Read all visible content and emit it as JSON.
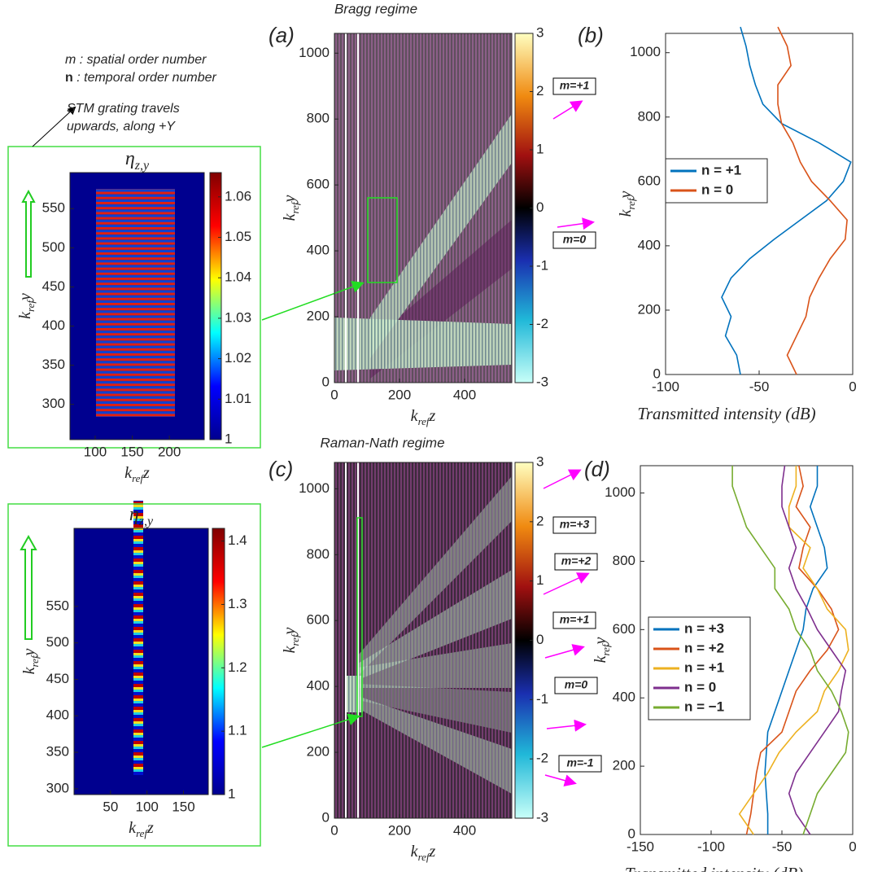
{
  "annotations": {
    "legend_m": {
      "symbol": "m",
      "text": ": spatial order number"
    },
    "legend_n": {
      "symbol": "n",
      "text": ": temporal order number"
    },
    "stm": [
      "STM grating travels",
      "upwards, along +Y"
    ]
  },
  "chart_data": [
    {
      "type": "heatmap",
      "title": [
        "η",
        "z,y"
      ],
      "xlabel": [
        "k",
        "ref",
        "z"
      ],
      "ylabel": [
        "k",
        "ref",
        "y"
      ],
      "xlim": [
        66,
        247
      ],
      "xticks": [
        100,
        150,
        200
      ],
      "ylim": [
        255,
        596
      ],
      "yticks": [
        300,
        350,
        400,
        450,
        500,
        550
      ],
      "clim": [
        1,
        1.066
      ],
      "cticks": [
        1,
        1.01,
        1.02,
        1.03,
        1.04,
        1.05,
        1.06
      ],
      "colormap": "jet"
    },
    {
      "type": "heatmap",
      "panel": "(a)",
      "title": "Bragg regime",
      "xlabel": [
        "k",
        "ref",
        "z"
      ],
      "ylabel": [
        "k",
        "ref",
        "y"
      ],
      "xlim": [
        0,
        545
      ],
      "xticks": [
        0,
        200,
        400
      ],
      "ylim": [
        0,
        1060
      ],
      "yticks": [
        0,
        200,
        400,
        600,
        800,
        1000
      ],
      "clim": [
        -3,
        3
      ],
      "cticks": [
        -3,
        -2,
        -1,
        0,
        1,
        2,
        3
      ],
      "colormap": "field",
      "order_labels": [
        "m=+1",
        "m=0"
      ]
    },
    {
      "type": "line",
      "panel": "(b)",
      "xlabel": "Transmitted intensity (dB)",
      "ylabel": [
        "k",
        "ref",
        "y"
      ],
      "xlim": [
        -100,
        0
      ],
      "xticks": [
        -100,
        -50,
        0
      ],
      "ylim": [
        0,
        1060
      ],
      "yticks": [
        0,
        200,
        400,
        600,
        800,
        1000
      ],
      "y": [
        0,
        60,
        120,
        180,
        240,
        300,
        360,
        420,
        480,
        540,
        600,
        660,
        720,
        780,
        840,
        900,
        960,
        1020,
        1080
      ],
      "series": [
        {
          "name": "n = +1",
          "color": "#0072bd",
          "values": [
            -60,
            -62,
            -68,
            -65,
            -70,
            -65,
            -55,
            -42,
            -28,
            -14,
            -5,
            -1,
            -18,
            -38,
            -48,
            -52,
            -55,
            -57,
            -60
          ]
        },
        {
          "name": "n = 0",
          "color": "#d95319",
          "values": [
            -30,
            -35,
            -30,
            -25,
            -23,
            -18,
            -12,
            -4,
            -3,
            -12,
            -22,
            -28,
            -32,
            -38,
            -40,
            -40,
            -33,
            -35,
            -40
          ]
        }
      ]
    },
    {
      "type": "heatmap",
      "title": [
        "η",
        "z,y"
      ],
      "xlabel": [
        "k",
        "ref",
        "z"
      ],
      "ylabel": [
        "k",
        "ref",
        "y"
      ],
      "xlim": [
        0,
        184
      ],
      "xticks": [
        50,
        100,
        150
      ],
      "ylim": [
        292,
        657
      ],
      "yticks": [
        300,
        350,
        400,
        450,
        500,
        550
      ],
      "clim": [
        1,
        1.42
      ],
      "cticks": [
        1,
        1.1,
        1.2,
        1.3,
        1.4
      ],
      "colormap": "jet"
    },
    {
      "type": "heatmap",
      "panel": "(c)",
      "title": "Raman-Nath regime",
      "xlabel": [
        "k",
        "ref",
        "z"
      ],
      "ylabel": [
        "k",
        "ref",
        "y"
      ],
      "xlim": [
        0,
        545
      ],
      "xticks": [
        0,
        200,
        400
      ],
      "ylim": [
        0,
        1080
      ],
      "yticks": [
        0,
        200,
        400,
        600,
        800,
        1000
      ],
      "clim": [
        -3,
        3
      ],
      "cticks": [
        -3,
        -2,
        -1,
        0,
        1,
        2,
        3
      ],
      "colormap": "field",
      "order_labels": [
        "m=+3",
        "m=+2",
        "m=+1",
        "m=0",
        "m=-1"
      ]
    },
    {
      "type": "line",
      "panel": "(d)",
      "xlabel": "Transmitted intensity (dB)",
      "ylabel": [
        "k",
        "ref",
        "y"
      ],
      "xlim": [
        -150,
        0
      ],
      "xticks": [
        -150,
        -100,
        -50,
        0
      ],
      "ylim": [
        0,
        1080
      ],
      "yticks": [
        0,
        200,
        400,
        600,
        800,
        1000
      ],
      "y": [
        0,
        60,
        120,
        180,
        240,
        300,
        360,
        420,
        480,
        540,
        600,
        660,
        720,
        780,
        840,
        900,
        960,
        1020,
        1080
      ],
      "series": [
        {
          "name": "n = +3",
          "color": "#0072bd",
          "values": [
            -60,
            -60,
            -61,
            -62,
            -61,
            -60,
            -55,
            -50,
            -45,
            -40,
            -35,
            -33,
            -28,
            -18,
            -20,
            -25,
            -30,
            -25,
            -25
          ]
        },
        {
          "name": "n = +2",
          "color": "#d95319",
          "values": [
            -75,
            -72,
            -70,
            -68,
            -65,
            -50,
            -45,
            -40,
            -30,
            -18,
            -10,
            -15,
            -25,
            -38,
            -35,
            -30,
            -40,
            -35,
            -38
          ]
        },
        {
          "name": "n = +1",
          "color": "#edb120",
          "values": [
            -70,
            -80,
            -70,
            -60,
            -52,
            -40,
            -25,
            -20,
            -10,
            -3,
            -5,
            -18,
            -25,
            -35,
            -30,
            -45,
            -45,
            -40,
            -40
          ]
        },
        {
          "name": "n = 0",
          "color": "#7e2f8e",
          "values": [
            -30,
            -40,
            -45,
            -40,
            -30,
            -20,
            -10,
            -8,
            -5,
            -15,
            -25,
            -32,
            -40,
            -45,
            -40,
            -45,
            -50,
            -50,
            -48
          ]
        },
        {
          "name": "n = −1",
          "color": "#77ac30",
          "values": [
            -35,
            -30,
            -25,
            -15,
            -5,
            -3,
            -8,
            -15,
            -25,
            -30,
            -40,
            -45,
            -55,
            -55,
            -65,
            -75,
            -80,
            -85,
            -85
          ]
        }
      ]
    }
  ]
}
